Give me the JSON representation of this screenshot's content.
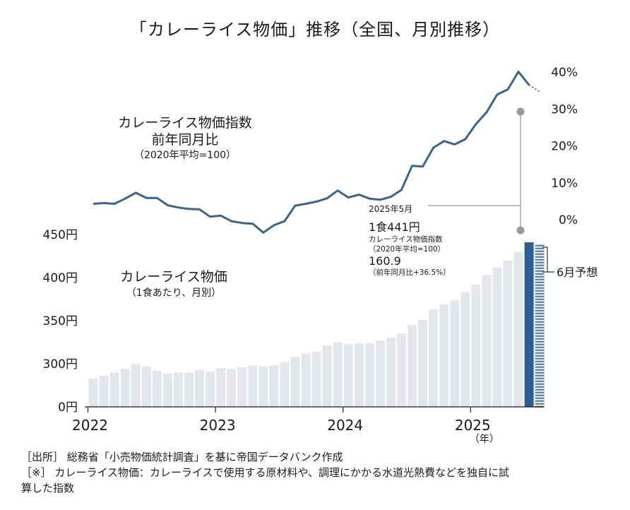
{
  "title": "「カレーライス物価」推移（全国、月別推移）",
  "notes": {
    "source": "［出所］ 総務省「小売物価統計調査」を基に帝国データバンク作成",
    "remark_line1": "［※］ カレーライス物価：カレーライスで使用する原材料や、調理にかかる水道光熱費などを独自に試",
    "remark_line2": "算した指数"
  },
  "colors": {
    "line": "#3c6388",
    "bar": "#e3e7ec",
    "bar_highlight": "#2e5f93",
    "forecast_stripe": "#4f7fb0",
    "connector": "#9a9a9a"
  },
  "chart_data": [
    {
      "type": "line",
      "label_line1": "カレーライス物価指数",
      "label_line2": "前年同月比",
      "label_line3": "（2020年平均=100）",
      "ylim": [
        0,
        40
      ],
      "y_ticks": [
        "40%",
        "30%",
        "20%",
        "10%",
        "0%"
      ],
      "y_tick_values": [
        40,
        30,
        20,
        10,
        0
      ],
      "values": [
        4.3,
        4.5,
        4.3,
        5.7,
        7.3,
        5.9,
        5.9,
        3.9,
        3.3,
        2.9,
        2.8,
        0.8,
        1.1,
        -0.4,
        -0.9,
        -1.1,
        -3.5,
        -1.5,
        -0.4,
        3.8,
        4.3,
        4.9,
        5.8,
        7.9,
        6.0,
        6.8,
        5.7,
        5.4,
        6.2,
        8.1,
        14.6,
        14.4,
        19.5,
        21.3,
        20.4,
        21.8,
        25.9,
        29.1,
        33.9,
        35.3,
        40.1,
        36.5
      ],
      "forecast_value": 34.7,
      "annotation": {
        "date": "2025年5月",
        "price": "1食441円",
        "index_label": "カレーライス物価指数",
        "index_base": "（2020年平均=100）",
        "index_value": "160.9",
        "yoy": "（前年同月比+36.5%）"
      }
    },
    {
      "type": "bar",
      "label_line1": "カレーライス物価",
      "label_line2": "（1食あたり、月別）",
      "y_ticks": [
        "450円",
        "400円",
        "350円",
        "300円",
        "0円"
      ],
      "y_tick_values": [
        450,
        400,
        350,
        300,
        250
      ],
      "axis_break": "0 is drawn at the 250 position (broken axis)",
      "x_labels": [
        "2022",
        "2023",
        "2024",
        "2025"
      ],
      "x_unit": "（年）",
      "values": [
        283,
        286,
        290,
        294,
        300,
        297,
        292,
        289,
        290,
        290,
        293,
        291,
        295,
        294,
        296,
        298,
        297,
        298,
        302,
        308,
        312,
        314,
        321,
        325,
        323,
        324,
        324,
        327,
        330,
        335,
        345,
        351,
        363,
        369,
        374,
        383,
        392,
        403,
        412,
        420,
        430,
        441
      ],
      "forecast_label": "6月予想",
      "forecast_value": 438
    }
  ]
}
